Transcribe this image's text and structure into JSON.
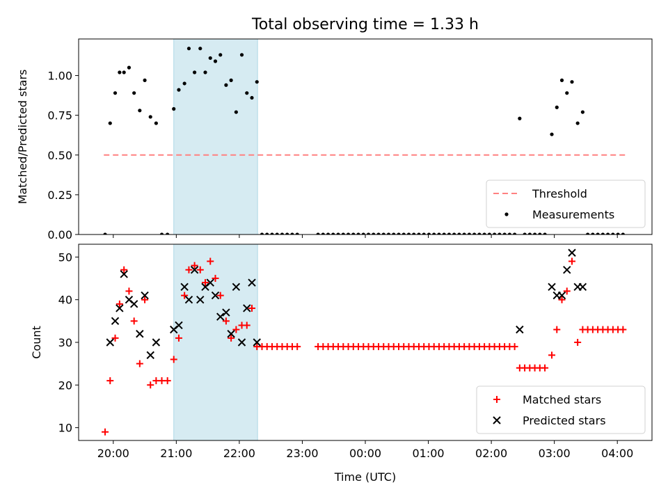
{
  "title": "Total observing time = 1.33 h",
  "chart_data": [
    {
      "type": "scatter",
      "ylabel": "Matched/Predicted stars",
      "xlabel": "",
      "ylim": [
        0,
        1.23
      ],
      "xlim": [
        -0.55,
        8.55
      ],
      "x_unit": "hours after 20:00 UTC",
      "x_ticks": [
        0,
        1,
        2,
        3,
        4,
        5,
        6,
        7,
        8
      ],
      "x_tick_labels": [
        "20:00",
        "21:00",
        "22:00",
        "23:00",
        "00:00",
        "01:00",
        "02:00",
        "03:00",
        "04:00"
      ],
      "y_ticks": [
        0,
        0.25,
        0.5,
        0.75,
        1.0
      ],
      "y_tick_labels": [
        "0.00",
        "0.25",
        "0.50",
        "0.75",
        "1.00"
      ],
      "shaded_interval": [
        0.96,
        2.29
      ],
      "legend": {
        "placement": "lower-right",
        "entries": [
          "Threshold",
          "Measurements"
        ]
      },
      "threshold": {
        "name": "Threshold",
        "value": 0.5,
        "x_range": [
          -0.15,
          8.15
        ],
        "color": "#ff8080"
      },
      "series": [
        {
          "name": "Measurements",
          "marker": "dot",
          "color": "#000000",
          "points": [
            [
              -0.13,
              0.0
            ],
            [
              -0.05,
              0.7
            ],
            [
              0.03,
              0.89
            ],
            [
              0.1,
              1.02
            ],
            [
              0.17,
              1.02
            ],
            [
              0.25,
              1.05
            ],
            [
              0.33,
              0.89
            ],
            [
              0.42,
              0.78
            ],
            [
              0.5,
              0.97
            ],
            [
              0.59,
              0.74
            ],
            [
              0.68,
              0.7
            ],
            [
              0.77,
              0.0
            ],
            [
              0.86,
              0.0
            ],
            [
              0.96,
              0.79
            ],
            [
              1.04,
              0.91
            ],
            [
              1.13,
              0.95
            ],
            [
              1.2,
              1.17
            ],
            [
              1.29,
              1.02
            ],
            [
              1.38,
              1.17
            ],
            [
              1.46,
              1.02
            ],
            [
              1.54,
              1.11
            ],
            [
              1.62,
              1.09
            ],
            [
              1.7,
              1.13
            ],
            [
              1.79,
              0.94
            ],
            [
              1.87,
              0.97
            ],
            [
              1.95,
              0.77
            ],
            [
              2.04,
              1.13
            ],
            [
              2.12,
              0.89
            ],
            [
              2.2,
              0.86
            ],
            [
              2.28,
              0.96
            ],
            [
              2.36,
              0.0
            ],
            [
              2.44,
              0.0
            ],
            [
              2.52,
              0.0
            ],
            [
              2.6,
              0.0
            ],
            [
              2.68,
              0.0
            ],
            [
              2.76,
              0.0
            ],
            [
              2.84,
              0.0
            ],
            [
              2.92,
              0.0
            ],
            [
              3.25,
              0.0
            ],
            [
              3.33,
              0.0
            ],
            [
              3.41,
              0.0
            ],
            [
              3.49,
              0.0
            ],
            [
              3.57,
              0.0
            ],
            [
              3.65,
              0.0
            ],
            [
              3.73,
              0.0
            ],
            [
              3.81,
              0.0
            ],
            [
              3.89,
              0.0
            ],
            [
              3.97,
              0.0
            ],
            [
              4.05,
              0.0
            ],
            [
              4.13,
              0.0
            ],
            [
              4.21,
              0.0
            ],
            [
              4.29,
              0.0
            ],
            [
              4.37,
              0.0
            ],
            [
              4.45,
              0.0
            ],
            [
              4.53,
              0.0
            ],
            [
              4.61,
              0.0
            ],
            [
              4.69,
              0.0
            ],
            [
              4.77,
              0.0
            ],
            [
              4.85,
              0.0
            ],
            [
              4.93,
              0.0
            ],
            [
              5.01,
              0.0
            ],
            [
              5.09,
              0.0
            ],
            [
              5.17,
              0.0
            ],
            [
              5.25,
              0.0
            ],
            [
              5.33,
              0.0
            ],
            [
              5.41,
              0.0
            ],
            [
              5.49,
              0.0
            ],
            [
              5.57,
              0.0
            ],
            [
              5.65,
              0.0
            ],
            [
              5.73,
              0.0
            ],
            [
              5.81,
              0.0
            ],
            [
              5.89,
              0.0
            ],
            [
              5.97,
              0.0
            ],
            [
              6.05,
              0.0
            ],
            [
              6.13,
              0.0
            ],
            [
              6.21,
              0.0
            ],
            [
              6.29,
              0.0
            ],
            [
              6.37,
              0.0
            ],
            [
              6.45,
              0.73
            ],
            [
              6.53,
              0.0
            ],
            [
              6.61,
              0.0
            ],
            [
              6.69,
              0.0
            ],
            [
              6.77,
              0.0
            ],
            [
              6.85,
              0.0
            ],
            [
              6.96,
              0.63
            ],
            [
              7.04,
              0.8
            ],
            [
              7.12,
              0.97
            ],
            [
              7.2,
              0.89
            ],
            [
              7.28,
              0.96
            ],
            [
              7.37,
              0.7
            ],
            [
              7.45,
              0.77
            ],
            [
              7.53,
              0.0
            ],
            [
              7.61,
              0.0
            ],
            [
              7.69,
              0.0
            ],
            [
              7.77,
              0.0
            ],
            [
              7.85,
              0.0
            ],
            [
              7.93,
              0.0
            ],
            [
              8.01,
              0.0
            ],
            [
              8.09,
              0.0
            ]
          ]
        }
      ]
    },
    {
      "type": "scatter",
      "ylabel": "Count",
      "xlabel": "Time (UTC)",
      "ylim": [
        7,
        53
      ],
      "xlim": [
        -0.55,
        8.55
      ],
      "x_unit": "hours after 20:00 UTC",
      "x_ticks": [
        0,
        1,
        2,
        3,
        4,
        5,
        6,
        7,
        8
      ],
      "x_tick_labels": [
        "20:00",
        "21:00",
        "22:00",
        "23:00",
        "00:00",
        "01:00",
        "02:00",
        "03:00",
        "04:00"
      ],
      "y_ticks": [
        10,
        20,
        30,
        40,
        50
      ],
      "y_tick_labels": [
        "10",
        "20",
        "30",
        "40",
        "50"
      ],
      "shaded_interval": [
        0.96,
        2.29
      ],
      "legend": {
        "placement": "lower-right",
        "entries": [
          "Matched stars",
          "Predicted stars"
        ]
      },
      "series": [
        {
          "name": "Matched stars",
          "marker": "plus",
          "color": "#ff0000",
          "points": [
            [
              -0.13,
              9
            ],
            [
              -0.05,
              21
            ],
            [
              0.03,
              31
            ],
            [
              0.1,
              39
            ],
            [
              0.17,
              47
            ],
            [
              0.25,
              42
            ],
            [
              0.33,
              35
            ],
            [
              0.42,
              25
            ],
            [
              0.5,
              40
            ],
            [
              0.59,
              20
            ],
            [
              0.68,
              21
            ],
            [
              0.77,
              21
            ],
            [
              0.86,
              21
            ],
            [
              0.96,
              26
            ],
            [
              1.04,
              31
            ],
            [
              1.13,
              41
            ],
            [
              1.2,
              47
            ],
            [
              1.29,
              48
            ],
            [
              1.38,
              47
            ],
            [
              1.46,
              44
            ],
            [
              1.54,
              49
            ],
            [
              1.62,
              45
            ],
            [
              1.7,
              41
            ],
            [
              1.79,
              35
            ],
            [
              1.87,
              31
            ],
            [
              1.95,
              33
            ],
            [
              2.04,
              34
            ],
            [
              2.12,
              34
            ],
            [
              2.2,
              38
            ],
            [
              2.28,
              29
            ],
            [
              2.36,
              29
            ],
            [
              2.44,
              29
            ],
            [
              2.52,
              29
            ],
            [
              2.6,
              29
            ],
            [
              2.68,
              29
            ],
            [
              2.76,
              29
            ],
            [
              2.84,
              29
            ],
            [
              2.92,
              29
            ],
            [
              3.25,
              29
            ],
            [
              3.33,
              29
            ],
            [
              3.41,
              29
            ],
            [
              3.49,
              29
            ],
            [
              3.57,
              29
            ],
            [
              3.65,
              29
            ],
            [
              3.73,
              29
            ],
            [
              3.81,
              29
            ],
            [
              3.89,
              29
            ],
            [
              3.97,
              29
            ],
            [
              4.05,
              29
            ],
            [
              4.13,
              29
            ],
            [
              4.21,
              29
            ],
            [
              4.29,
              29
            ],
            [
              4.37,
              29
            ],
            [
              4.45,
              29
            ],
            [
              4.53,
              29
            ],
            [
              4.61,
              29
            ],
            [
              4.69,
              29
            ],
            [
              4.77,
              29
            ],
            [
              4.85,
              29
            ],
            [
              4.93,
              29
            ],
            [
              5.01,
              29
            ],
            [
              5.09,
              29
            ],
            [
              5.17,
              29
            ],
            [
              5.25,
              29
            ],
            [
              5.33,
              29
            ],
            [
              5.41,
              29
            ],
            [
              5.49,
              29
            ],
            [
              5.57,
              29
            ],
            [
              5.65,
              29
            ],
            [
              5.73,
              29
            ],
            [
              5.81,
              29
            ],
            [
              5.89,
              29
            ],
            [
              5.97,
              29
            ],
            [
              6.05,
              29
            ],
            [
              6.13,
              29
            ],
            [
              6.21,
              29
            ],
            [
              6.29,
              29
            ],
            [
              6.37,
              29
            ],
            [
              6.45,
              24
            ],
            [
              6.53,
              24
            ],
            [
              6.61,
              24
            ],
            [
              6.69,
              24
            ],
            [
              6.77,
              24
            ],
            [
              6.85,
              24
            ],
            [
              6.96,
              27
            ],
            [
              7.04,
              33
            ],
            [
              7.12,
              40
            ],
            [
              7.2,
              42
            ],
            [
              7.28,
              49
            ],
            [
              7.37,
              30
            ],
            [
              7.45,
              33
            ],
            [
              7.53,
              33
            ],
            [
              7.61,
              33
            ],
            [
              7.69,
              33
            ],
            [
              7.77,
              33
            ],
            [
              7.85,
              33
            ],
            [
              7.93,
              33
            ],
            [
              8.01,
              33
            ],
            [
              8.09,
              33
            ]
          ]
        },
        {
          "name": "Predicted stars",
          "marker": "x",
          "color": "#000000",
          "points": [
            [
              -0.05,
              30
            ],
            [
              0.03,
              35
            ],
            [
              0.1,
              38
            ],
            [
              0.17,
              46
            ],
            [
              0.25,
              40
            ],
            [
              0.33,
              39
            ],
            [
              0.42,
              32
            ],
            [
              0.5,
              41
            ],
            [
              0.59,
              27
            ],
            [
              0.68,
              30
            ],
            [
              0.96,
              33
            ],
            [
              1.04,
              34
            ],
            [
              1.13,
              43
            ],
            [
              1.2,
              40
            ],
            [
              1.29,
              47
            ],
            [
              1.38,
              40
            ],
            [
              1.46,
              43
            ],
            [
              1.54,
              44
            ],
            [
              1.62,
              41
            ],
            [
              1.7,
              36
            ],
            [
              1.79,
              37
            ],
            [
              1.87,
              32
            ],
            [
              1.95,
              43
            ],
            [
              2.04,
              30
            ],
            [
              2.12,
              38
            ],
            [
              2.2,
              44
            ],
            [
              2.28,
              30
            ],
            [
              6.45,
              33
            ],
            [
              6.96,
              43
            ],
            [
              7.04,
              41
            ],
            [
              7.12,
              41
            ],
            [
              7.2,
              47
            ],
            [
              7.28,
              51
            ],
            [
              7.37,
              43
            ],
            [
              7.45,
              43
            ]
          ]
        }
      ]
    }
  ]
}
